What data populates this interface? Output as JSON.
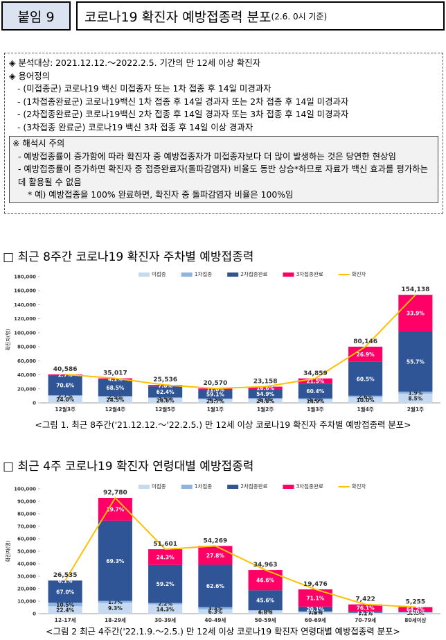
{
  "header": {
    "tag": "붙임 9",
    "title": "코로나19 확진자 예방접종력 분포",
    "subtitle": "(2.6. 0시 기준)"
  },
  "notes": {
    "lines": [
      "◈ 분석대상: 2021.12.12.～2022.2.5. 기간의 만 12세 이상 확진자",
      "◈ 용어정의",
      "- (미접종군) 코로나19 백신 미접종자 또는 1차 접종 후 14일 미경과자",
      "- (1차접종완료군) 코로나19백신 1차 접종 후 14일 경과자 또는 2차 접종 후 14일 미경과자",
      "- (2차접종완료군) 코로나19백신 2차 접종 후 14일 경과자 또는 3차 접종 후 14일 미경과자",
      "- (3차접종 완료군) 코로나19 백신 3차 접종 후 14일 이상 경과자"
    ],
    "caution": {
      "title": "※ 해석시 주의",
      "items": [
        "- 예방접종률이 증가함에 따라 확진자 중 예방접종자가 미접종자보다 더 많이 발생하는 것은 당연한 현상임",
        "- 예방접종률이 증가하면 확진자 중 접종완료자(돌파감염자) 비율도 동반 상승*하므로 자료가 백신 효과를 평가하는데 활용될 수 없음"
      ],
      "footnote": "* 예) 예방접종을 100% 완료하면, 확진자 중 돌파감염자 비율은 100%임"
    }
  },
  "chart_data": [
    {
      "type": "bar",
      "title": "□ 최근 8주간 코로나19 확진자 주차별 예방접종력",
      "caption": "<그림 1. 최근 8주간('21.12.12.～'22.2.5.) 만 12세 이상 코로나19 확진자 주차별 예방접종력 분포>",
      "y_label": "확진자(명)",
      "categories": [
        "12월3주",
        "12월4주",
        "12월5주",
        "1월1주",
        "1월2주",
        "1월3주",
        "1월4주",
        "2월1주"
      ],
      "ylim": [
        0,
        180000
      ],
      "yticks": [
        0,
        {
          "value": 20000,
          "label": "20,000"
        },
        {
          "value": 40000,
          "label": "40,000"
        },
        {
          "value": 60000,
          "label": "60,000"
        },
        {
          "value": 80000,
          "label": "80,000"
        },
        {
          "value": 100000,
          "label": "100,000"
        },
        {
          "value": 120000,
          "label": "120,000"
        },
        {
          "value": 140000,
          "label": "140,000"
        },
        {
          "value": 160000,
          "label": "160,000"
        },
        {
          "value": 180000,
          "label": "180,000"
        }
      ],
      "series": [
        {
          "name": "미접종",
          "color": "#c5d9f1",
          "values": [
            24.0,
            24.5,
            26.6,
            25.7,
            24.8,
            14.9,
            10.0,
            8.5
          ],
          "value_labels": [
            "24.0%",
            "24.5%",
            "26.6%",
            "25.7%",
            "24.8%",
            "14.9%",
            "10.0%",
            "8.5%"
          ]
        },
        {
          "name": "1차접종",
          "color": "#8eb4e3",
          "values": [
            2.7,
            2.9,
            3.4,
            4.3,
            3.7,
            3.2,
            2.6,
            1.9
          ],
          "value_labels": [
            "2.7%",
            "2.9%",
            "3.4%",
            "4.3%",
            "3.7%",
            "3.2%",
            "2.6%",
            "1.9%"
          ]
        },
        {
          "name": "2차접종완료",
          "color": "#2f5597",
          "values": [
            70.6,
            68.5,
            62.4,
            59.1,
            54.9,
            60.4,
            60.5,
            55.7
          ],
          "value_labels": [
            "70.6%",
            "68.5%",
            "62.4%",
            "59.1%",
            "54.9%",
            "60.4%",
            "60.5%",
            "55.7%"
          ]
        },
        {
          "name": "3차접종완료",
          "color": "#ff0066",
          "values": [
            2.7,
            4.1,
            7.6,
            11.0,
            16.6,
            21.5,
            26.9,
            33.9
          ],
          "value_labels": [
            "2.7%",
            "4.1%",
            "7.6%",
            "11.0%",
            "16.6%",
            "21.5%",
            "26.9%",
            "33.9%"
          ]
        }
      ],
      "totals": {
        "name": "확진자",
        "color": "#ffc000",
        "values": [
          40586,
          35017,
          25536,
          20570,
          23158,
          34859,
          80146,
          154138
        ],
        "value_labels": [
          "40,586",
          "35,017",
          "25,536",
          "20,570",
          "23,158",
          "34,859",
          "80,146",
          "154,138"
        ]
      }
    },
    {
      "type": "bar",
      "title": "□ 최근 4주 코로나19 확진자 연령대별 예방접종력",
      "caption": "<그림 2 최근 4주간('22.1.9.～2.5.) 만 12세 이상 코로나19 확진자 연령대별 예방접종력 분포>",
      "y_label": "확진자(명)",
      "categories": [
        "12-17세",
        "18-29세",
        "30-39세",
        "40-49세",
        "50-59세",
        "60-69세",
        "70-79세",
        "80세이상"
      ],
      "ylim": [
        0,
        100000
      ],
      "yticks": [
        0,
        {
          "value": 10000,
          "label": "10,000"
        },
        {
          "value": 20000,
          "label": "20,000"
        },
        {
          "value": 30000,
          "label": "30,000"
        },
        {
          "value": 40000,
          "label": "40,000"
        },
        {
          "value": 50000,
          "label": "50,000"
        },
        {
          "value": 60000,
          "label": "60,000"
        },
        {
          "value": 70000,
          "label": "70,000"
        },
        {
          "value": 80000,
          "label": "80,000"
        },
        {
          "value": 90000,
          "label": "90,000"
        },
        {
          "value": 100000,
          "label": "100,000"
        }
      ],
      "series": [
        {
          "name": "미접종",
          "color": "#c5d9f1",
          "values": [
            22.4,
            9.3,
            14.3,
            6.3,
            6.8,
            7.8,
            9.1,
            19.5
          ],
          "value_labels": [
            "22.4%",
            "9.3%",
            "14.3%",
            "6.3%",
            "6.8%",
            "7.8%",
            "9.1%",
            "19.5%"
          ]
        },
        {
          "name": "1차접종",
          "color": "#8eb4e3",
          "values": [
            10.5,
            1.7,
            2.2,
            3.3,
            1.0,
            1.0,
            1.3,
            2.3
          ],
          "value_labels": [
            "10.5%",
            "1.7%",
            "2.2%",
            "3.3%",
            "1.0%",
            "1.0%",
            "1.3%",
            "2.3%"
          ]
        },
        {
          "name": "2차접종완료",
          "color": "#2f5597",
          "values": [
            67.0,
            69.3,
            59.2,
            62.6,
            45.6,
            20.1,
            13.5,
            14.0
          ],
          "value_labels": [
            "67.0%",
            "69.3%",
            "59.2%",
            "62.6%",
            "45.6%",
            "20.1%",
            "13.5%",
            "14.0%"
          ]
        },
        {
          "name": "3차접종완료",
          "color": "#ff0066",
          "values": [
            0.1,
            19.7,
            24.3,
            27.8,
            46.6,
            71.1,
            76.1,
            64.2
          ],
          "value_labels": [
            "0.1%",
            "19.7%",
            "24.3%",
            "27.8%",
            "46.6%",
            "71.1%",
            "76.1%",
            "64.2%"
          ]
        }
      ],
      "totals": {
        "name": "확진자",
        "color": "#ffc000",
        "values": [
          26535,
          92780,
          51601,
          54269,
          34963,
          19476,
          7422,
          5255
        ],
        "value_labels": [
          "26,535",
          "92,780",
          "51,601",
          "54,269",
          "34,963",
          "19,476",
          "7,422",
          "5,255"
        ]
      }
    }
  ]
}
